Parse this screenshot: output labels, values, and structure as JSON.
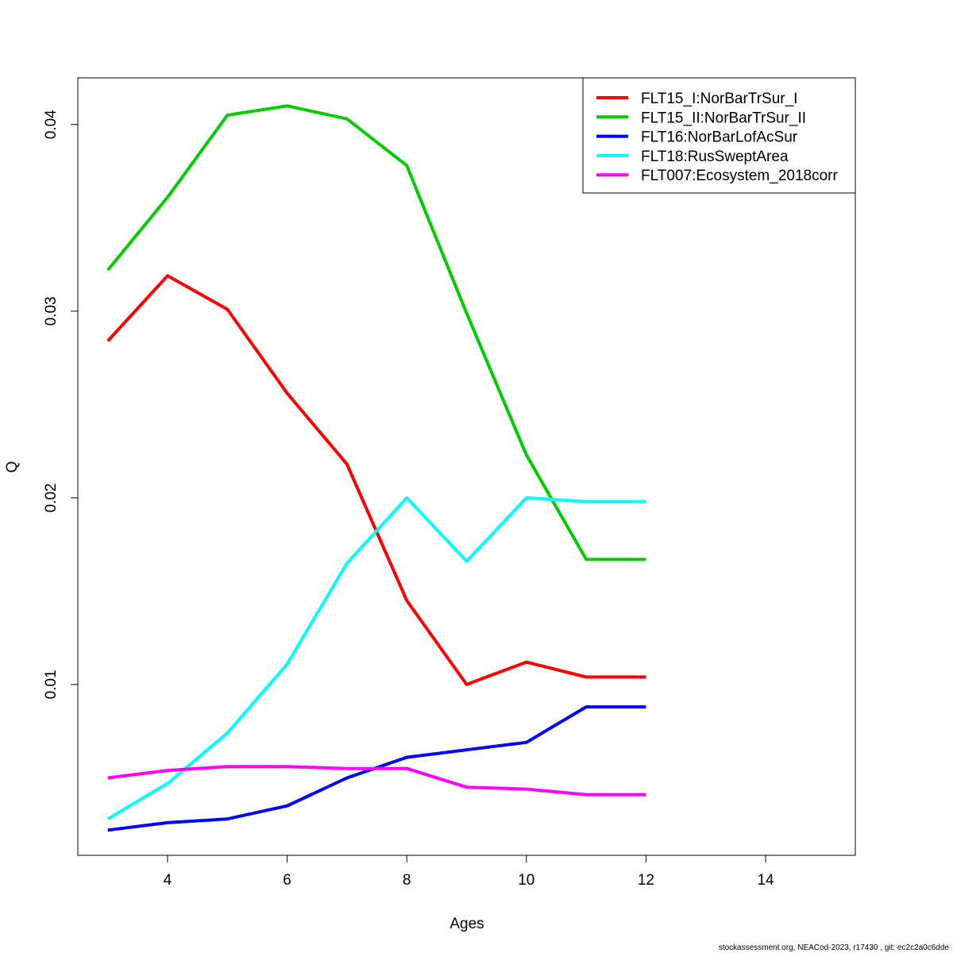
{
  "chart_data": {
    "type": "line",
    "xlabel": "Ages",
    "ylabel": "Q",
    "xlim": [
      2.5,
      15.5
    ],
    "ylim": [
      0.00085,
      0.0425
    ],
    "x_ticks": [
      4,
      6,
      8,
      10,
      12,
      14
    ],
    "y_ticks": [
      0.01,
      0.02,
      0.03,
      0.04
    ],
    "y_tick_labels": [
      "0.01",
      "0.02",
      "0.03",
      "0.04"
    ],
    "x_tick_labels": [
      "4",
      "6",
      "8",
      "10",
      "12",
      "14"
    ],
    "grid": false,
    "legend_position": "top-right",
    "x": [
      3,
      4,
      5,
      6,
      7,
      8,
      9,
      10,
      11,
      12
    ],
    "series": [
      {
        "name": "FLT15_I:NorBarTrSur_I",
        "color": "#ff0000",
        "values": [
          0.0284,
          0.0319,
          0.0301,
          0.0256,
          0.0218,
          0.0145,
          0.01,
          0.0112,
          0.0104,
          0.0104
        ]
      },
      {
        "name": "FLT15_II:NorBarTrSur_II",
        "color": "#00cd00",
        "values": [
          0.0322,
          0.0361,
          0.0405,
          0.041,
          0.0403,
          0.0378,
          0.0299,
          0.0223,
          0.0167,
          0.0167
        ]
      },
      {
        "name": "FLT16:NorBarLofAcSur",
        "color": "#0000ff",
        "values": [
          0.0022,
          0.0026,
          0.0028,
          0.0035,
          0.005,
          0.0061,
          0.0065,
          0.0069,
          0.0088,
          0.0088
        ]
      },
      {
        "name": "FLT18:RusSweptArea",
        "color": "#00ffff",
        "values": [
          0.0028,
          0.0047,
          0.0074,
          0.0111,
          0.0165,
          0.02,
          0.0166,
          0.02,
          0.0198,
          0.0198
        ]
      },
      {
        "name": "FLT007:Ecosystem_2018corr",
        "color": "#ff00ff",
        "values": [
          0.005,
          0.0054,
          0.0056,
          0.0056,
          0.0055,
          0.0055,
          0.0045,
          0.0044,
          0.0041,
          0.0041
        ]
      }
    ]
  },
  "footer": "stockassessment.org, NEACod-2023, r17430 , git: ec2c2a0c6dde"
}
